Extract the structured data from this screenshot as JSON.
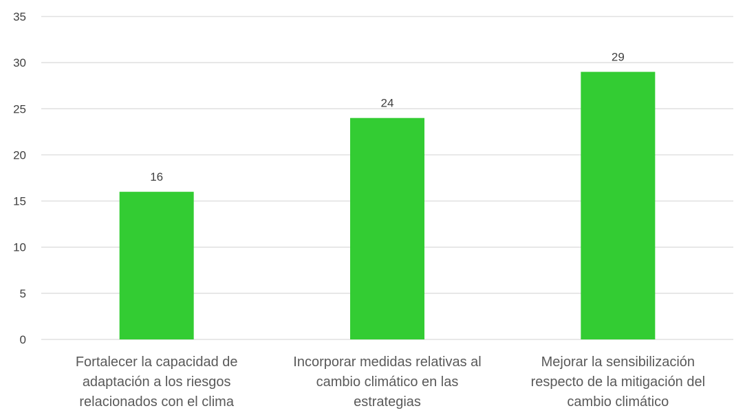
{
  "chart_data": {
    "type": "bar",
    "categories": [
      [
        "Fortalecer la capacidad de",
        "adaptación a los riesgos",
        "relacionados con el clima"
      ],
      [
        "Incorporar medidas relativas al",
        "cambio climático en las",
        "estrategias"
      ],
      [
        "Mejorar  la sensibilización",
        "respecto de la mitigación del",
        "cambio climático"
      ]
    ],
    "values": [
      16,
      24,
      29
    ],
    "data_labels": [
      "16",
      "24",
      "29"
    ],
    "y_ticks": [
      "0",
      "5",
      "10",
      "15",
      "20",
      "25",
      "30",
      "35"
    ],
    "ylim": [
      0,
      35
    ],
    "grid": true,
    "legend": "none",
    "bar_color": "#33cc33",
    "title": "",
    "xlabel": "",
    "ylabel": ""
  }
}
